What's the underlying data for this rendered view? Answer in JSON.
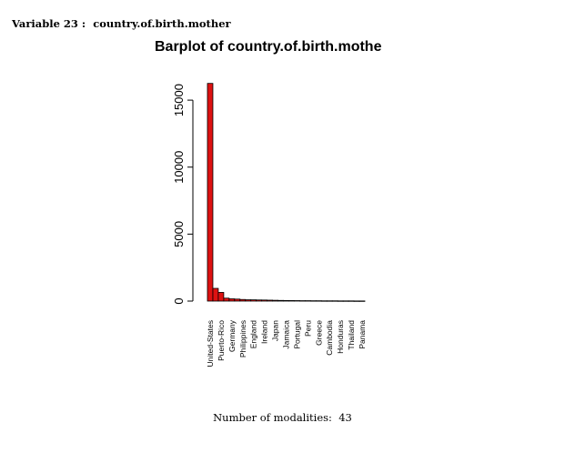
{
  "variable_header": {
    "prefix": "Variable 23 :",
    "name": "country.of.birth.mother"
  },
  "footer": {
    "label": "Number of modalities:",
    "count": "43"
  },
  "colors": {
    "first_bar": "#dd1111",
    "other_bars": "#dd1111",
    "stroke": "#000000"
  },
  "chart_data": {
    "type": "bar",
    "title": "Barplot of country.of.birth.mothe",
    "xlabel": "",
    "ylabel": "",
    "ylim": [
      0,
      16500
    ],
    "yticks": [
      0,
      5000,
      10000,
      15000
    ],
    "grid": false,
    "legend": "none",
    "categories": [
      "United-States",
      "",
      "Puerto-Rico",
      "",
      "Germany",
      "",
      "Philippines",
      "",
      "England",
      "",
      "Ireland",
      "",
      "Japan",
      "",
      "Jamaica",
      "",
      "Portugal",
      "",
      "Peru",
      "",
      "Greece",
      "",
      "Cambodia",
      "",
      "Honduras",
      "",
      "Thailand",
      "",
      "Panama"
    ],
    "values": [
      16250,
      950,
      650,
      220,
      170,
      150,
      120,
      100,
      95,
      85,
      80,
      70,
      60,
      50,
      45,
      40,
      35,
      30,
      30,
      25,
      25,
      20,
      20,
      20,
      15,
      15,
      15,
      10,
      10
    ]
  }
}
